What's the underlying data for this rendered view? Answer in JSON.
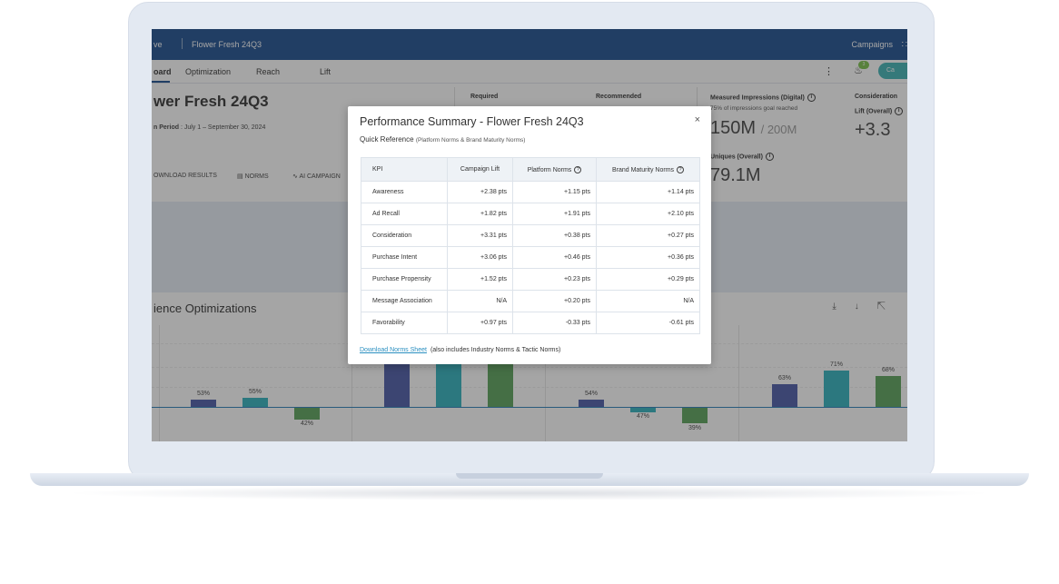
{
  "app": {
    "topbar_brand": "ve",
    "topbar_title": "Flower Fresh 24Q3",
    "topbar_campaigns": "Campaigns",
    "tabs": [
      "oard",
      "Optimization",
      "Reach",
      "Lift"
    ],
    "bell_badge": "3",
    "help_label": "Ca"
  },
  "header": {
    "title": "wer Fresh 24Q3",
    "period_label": "n Period",
    "period_value": " : July 1 – September 30, 2024",
    "actions": [
      "OWNLOAD RESULTS",
      "NORMS",
      "AI CAMPAIGN"
    ],
    "required_label": "Required",
    "recommended_label": "Recommended",
    "impressions_label": "Measured Impressions (Digital)",
    "impressions_sub": "75% of impressions goal reached",
    "impressions_value": "150M",
    "impressions_goal": "/ 200M",
    "uniques_label": "Uniques (Overall)",
    "uniques_value": "79.1M",
    "consideration_label": "Consideration",
    "consideration_sub": "Lift (Overall)",
    "consideration_value": "+3.3"
  },
  "section": {
    "title": "ience Optimizations"
  },
  "chart_labels": {
    "l1": "53%",
    "l2": "55%",
    "l3": "42%",
    "l4": "54%",
    "l5": "47%",
    "l6": "39%",
    "l7": "63%",
    "l8": "71%",
    "l9": "68%"
  },
  "modal": {
    "title": "Performance Summary - Flower Fresh 24Q3",
    "close": "×",
    "subtitle": "Quick Reference",
    "subtitle_note": "(Platform Norms & Brand Maturity Norms)",
    "columns": [
      "KPI",
      "Campaign Lift",
      "Platform Norms",
      "Brand Maturity Norms"
    ],
    "rows": [
      [
        "Awareness",
        "+2.38 pts",
        "+1.15 pts",
        "+1.14 pts"
      ],
      [
        "Ad Recall",
        "+1.82 pts",
        "+1.91 pts",
        "+2.10 pts"
      ],
      [
        "Consideration",
        "+3.31 pts",
        "+0.38 pts",
        "+0.27 pts"
      ],
      [
        "Purchase Intent",
        "+3.06 pts",
        "+0.46 pts",
        "+0.36 pts"
      ],
      [
        "Purchase Propensity",
        "+1.52 pts",
        "+0.23 pts",
        "+0.29 pts"
      ],
      [
        "Message Association",
        "N/A",
        "+0.20 pts",
        "N/A"
      ],
      [
        "Favorability",
        "+0.97 pts",
        "-0.33 pts",
        "-0.61 pts"
      ]
    ],
    "download_link": "Download Norms Sheet",
    "download_note": "(also includes Industry Norms & Tactic Norms)"
  },
  "colors": {
    "topbar": "#1d4e8f",
    "bar_navy": "#4b5aa7",
    "bar_teal": "#2fb2bd",
    "bar_green": "#5aa35a",
    "link": "#2a8fc0"
  }
}
